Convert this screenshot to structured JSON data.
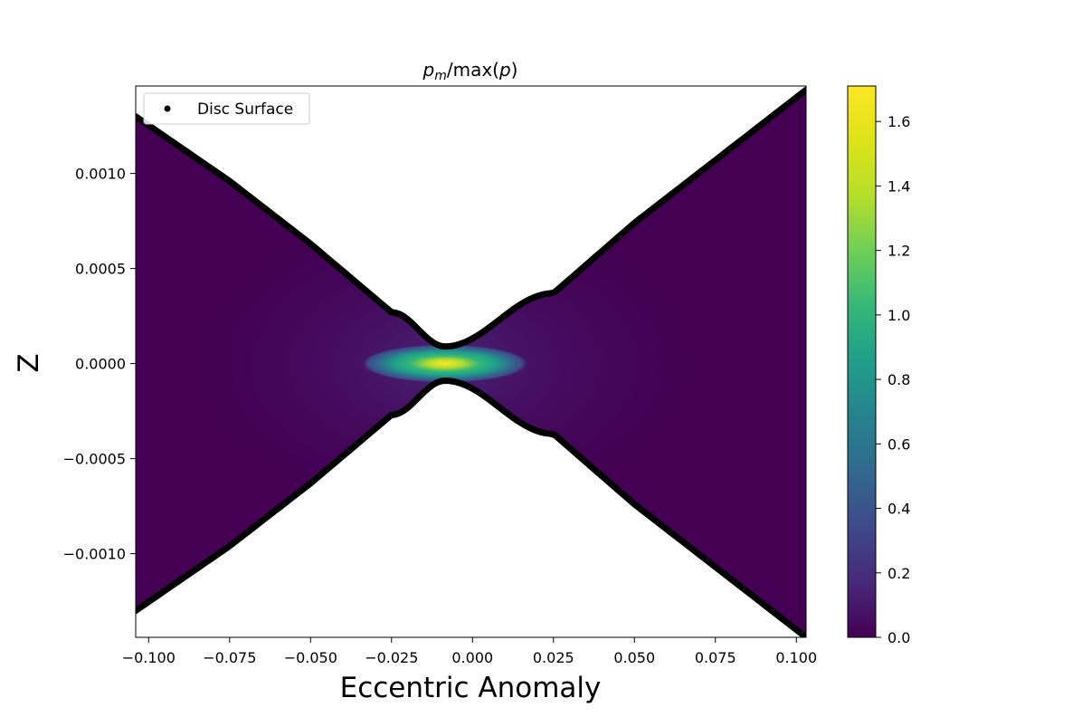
{
  "chart_data": {
    "type": "heatmap",
    "title_main": "p",
    "title_sub": "m",
    "title_rest": "/max(",
    "title_var": "p",
    "title_close": ")",
    "xlabel": "Eccentric Anomaly",
    "ylabel": "Z",
    "xlim": [
      -0.104,
      0.103
    ],
    "ylim": [
      -0.00144,
      0.00146
    ],
    "x_ticks": [
      -0.1,
      -0.075,
      -0.05,
      -0.025,
      0.0,
      0.025,
      0.05,
      0.075,
      0.1
    ],
    "x_tick_labels": [
      "−0.100",
      "−0.075",
      "−0.050",
      "−0.025",
      "0.000",
      "0.025",
      "0.050",
      "0.075",
      "0.100"
    ],
    "y_ticks": [
      0.001,
      0.0005,
      0.0,
      -0.0005,
      -0.001
    ],
    "y_tick_labels": [
      "0.0010",
      "0.0005",
      "0.0000",
      "−0.0005",
      "−0.0010"
    ],
    "colorbar": {
      "colormap": "viridis",
      "vmin": 0.0,
      "vmax": 1.71,
      "ticks": [
        0.0,
        0.2,
        0.4,
        0.6,
        0.8,
        1.0,
        1.2,
        1.4,
        1.6
      ],
      "tick_labels": [
        "0.0",
        "0.2",
        "0.4",
        "0.6",
        "0.8",
        "1.0",
        "1.2",
        "1.4",
        "1.6"
      ]
    },
    "legend": {
      "placement": "upper-left",
      "entries": [
        {
          "label": "Disc Surface",
          "marker": "circle",
          "color": "#000000"
        }
      ]
    },
    "disc_surface": {
      "x_center": -0.0085,
      "z_min": 9e-05,
      "profile_x": [
        -0.104,
        -0.075,
        -0.05,
        -0.025,
        -0.0085,
        0.025,
        0.05,
        0.075,
        0.103
      ],
      "profile_z_upper": [
        0.0013,
        0.00096,
        0.00063,
        0.00027,
        9e-05,
        0.00037,
        0.00074,
        0.00107,
        0.00144
      ]
    },
    "peak": {
      "x": -0.0085,
      "z": 0.0,
      "value": 1.71
    }
  }
}
